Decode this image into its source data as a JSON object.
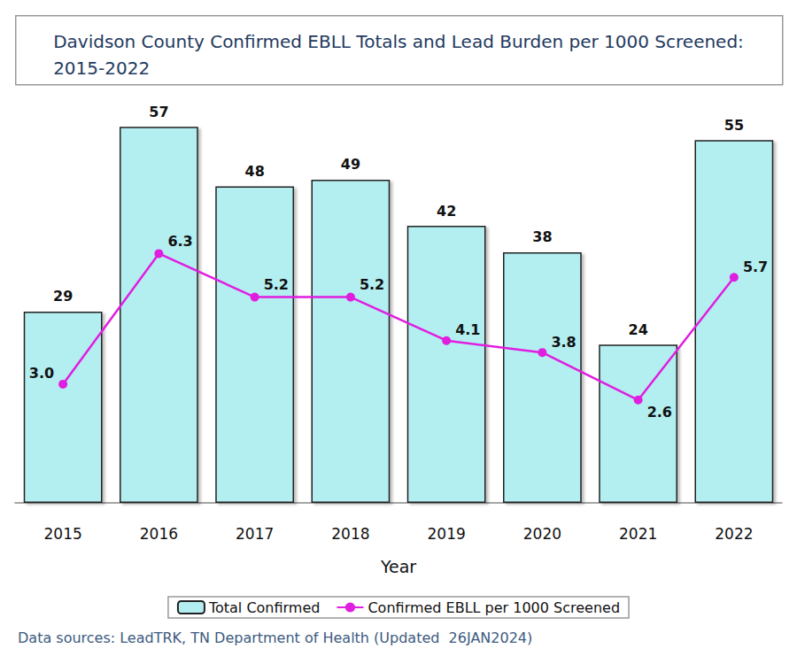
{
  "chart_data": {
    "type": "bar",
    "title": "Davidson County Confirmed EBLL Totals and Lead Burden per 1000 Screened:\n2015-2022",
    "x_label": "Year",
    "source": "Data sources: LeadTRK, TN Department of Health (Updated  26JAN2024)",
    "categories": [
      "2015",
      "2016",
      "2017",
      "2018",
      "2019",
      "2020",
      "2021",
      "2022"
    ],
    "series": [
      {
        "name": "Total Confirmed",
        "type": "bar",
        "color": "#b3eef0",
        "values": [
          29,
          57,
          48,
          49,
          42,
          38,
          24,
          55
        ]
      },
      {
        "name": "Confirmed EBLL per 1000 Screened",
        "type": "line",
        "color": "#e01ee0",
        "marker": "circle",
        "axis": "y2",
        "values": [
          3.0,
          6.3,
          5.2,
          5.2,
          4.1,
          3.8,
          2.6,
          5.7
        ],
        "value_labels": [
          "3.0",
          "6.3",
          "5.2",
          "5.2",
          "4.1",
          "3.8",
          "2.6",
          "5.7"
        ]
      }
    ],
    "ylim": [
      0,
      60
    ],
    "y2lim": [
      0,
      10
    ],
    "data_labels": true,
    "tick_labels": false,
    "grid": false,
    "legend": "bottom"
  }
}
